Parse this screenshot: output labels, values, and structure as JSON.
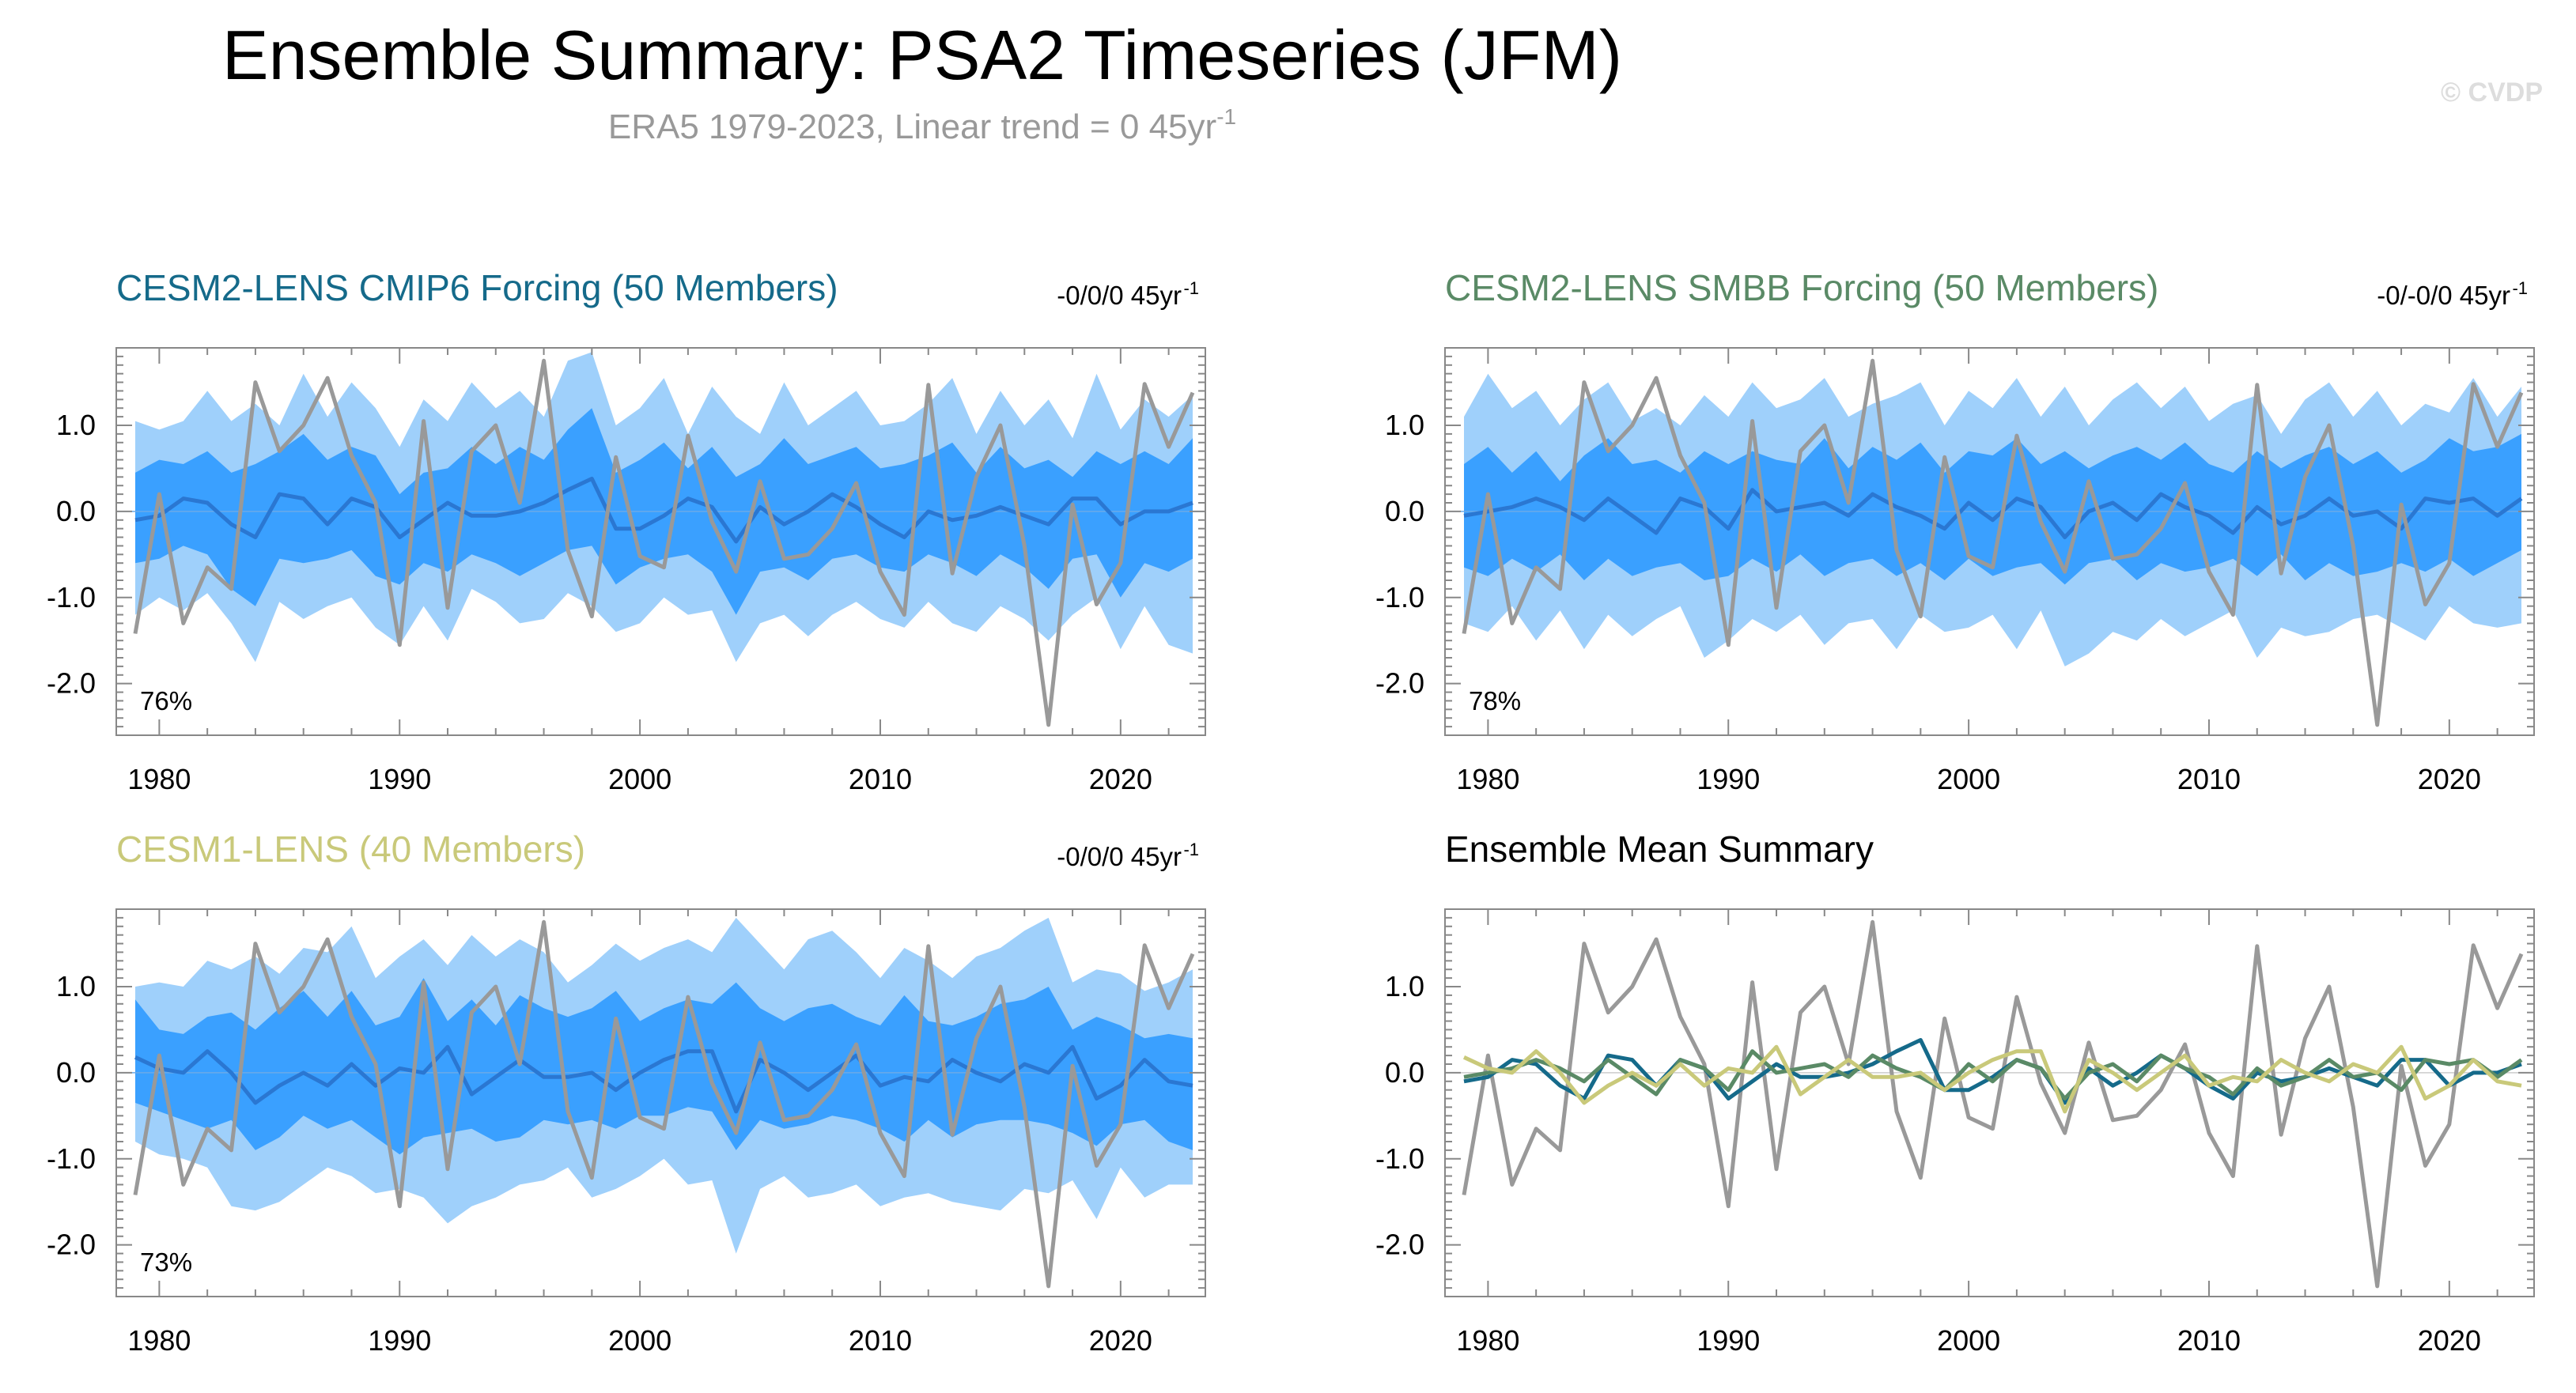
{
  "header": {
    "title": "Ensemble Summary: PSA2 Timeseries (JFM)",
    "subtitle_main": "ERA5 1979-2023, Linear trend = 0 45yr",
    "subtitle_sup": "-1",
    "watermark": "© CVDP"
  },
  "colors": {
    "band_outer": "#9fd0fb",
    "band_inner": "#3aa0ff",
    "ens_mean": "#2a77d2",
    "obs": "#999999",
    "cesm2_cmip6": "#156a8a",
    "cesm2_smbb": "#5a8a66",
    "cesm1": "#c9c97a"
  },
  "chart_data": [
    {
      "type": "area",
      "panel_id": "p1",
      "title": "CESM2-LENS CMIP6 Forcing (50 Members)",
      "title_color": "#156a8a",
      "trend_label": "-0/0/0 45yr",
      "trend_sup": "-1",
      "percent_label": "76%",
      "xlim": [
        1979,
        2023
      ],
      "ylim": [
        -2.6,
        1.9
      ],
      "xticks": [
        "1980",
        "1990",
        "2000",
        "2010",
        "2020"
      ],
      "yticks": [
        "1.0",
        "0.0",
        "-1.0",
        "-2.0"
      ],
      "years": [
        1979,
        1980,
        1981,
        1982,
        1983,
        1984,
        1985,
        1986,
        1987,
        1988,
        1989,
        1990,
        1991,
        1992,
        1993,
        1994,
        1995,
        1996,
        1997,
        1998,
        1999,
        2000,
        2001,
        2002,
        2003,
        2004,
        2005,
        2006,
        2007,
        2008,
        2009,
        2010,
        2011,
        2012,
        2013,
        2014,
        2015,
        2016,
        2017,
        2018,
        2019,
        2020,
        2021,
        2022,
        2023
      ],
      "outer_upper": [
        1.05,
        0.95,
        1.05,
        1.4,
        1.05,
        1.25,
        1.0,
        1.6,
        1.1,
        1.5,
        1.2,
        0.75,
        1.3,
        1.05,
        1.5,
        1.2,
        1.4,
        1.1,
        1.75,
        1.85,
        1.0,
        1.2,
        1.55,
        0.9,
        1.45,
        1.1,
        0.9,
        1.5,
        1.0,
        1.2,
        1.4,
        1.0,
        1.05,
        1.25,
        1.55,
        0.9,
        1.4,
        1.0,
        1.3,
        0.85,
        1.6,
        0.95,
        1.3,
        1.1,
        1.35
      ],
      "inner_upper": [
        0.45,
        0.6,
        0.55,
        0.7,
        0.45,
        0.55,
        0.7,
        0.9,
        0.6,
        0.75,
        0.65,
        0.2,
        0.45,
        0.5,
        0.75,
        0.55,
        0.75,
        0.6,
        0.95,
        1.2,
        0.45,
        0.6,
        0.8,
        0.5,
        0.75,
        0.4,
        0.55,
        0.85,
        0.55,
        0.65,
        0.75,
        0.5,
        0.55,
        0.65,
        0.8,
        0.45,
        0.75,
        0.5,
        0.6,
        0.4,
        0.7,
        0.55,
        0.7,
        0.55,
        0.85
      ],
      "inner_lower": [
        -0.6,
        -0.55,
        -0.4,
        -0.5,
        -0.9,
        -1.1,
        -0.55,
        -0.6,
        -0.55,
        -0.45,
        -0.75,
        -0.85,
        -0.6,
        -0.7,
        -0.5,
        -0.6,
        -0.75,
        -0.6,
        -0.45,
        -0.4,
        -0.85,
        -0.65,
        -0.55,
        -0.5,
        -0.7,
        -1.2,
        -0.7,
        -0.65,
        -0.8,
        -0.55,
        -0.5,
        -0.65,
        -0.7,
        -0.5,
        -0.6,
        -0.75,
        -0.5,
        -0.65,
        -0.9,
        -0.55,
        -0.5,
        -1.0,
        -0.6,
        -0.7,
        -0.55
      ],
      "outer_lower": [
        -1.2,
        -1.0,
        -1.15,
        -0.95,
        -1.3,
        -1.75,
        -1.05,
        -1.25,
        -1.1,
        -1.0,
        -1.35,
        -1.55,
        -1.1,
        -1.5,
        -0.9,
        -1.05,
        -1.3,
        -1.25,
        -0.95,
        -1.1,
        -1.4,
        -1.3,
        -1.0,
        -1.2,
        -1.15,
        -1.75,
        -1.3,
        -1.2,
        -1.45,
        -1.2,
        -1.05,
        -1.25,
        -1.35,
        -1.05,
        -1.3,
        -1.4,
        -1.1,
        -1.25,
        -1.5,
        -1.2,
        -1.0,
        -1.6,
        -1.1,
        -1.55,
        -1.65
      ],
      "ens_mean": [
        -0.1,
        -0.05,
        0.15,
        0.1,
        -0.15,
        -0.3,
        0.2,
        0.15,
        -0.15,
        0.15,
        0.05,
        -0.3,
        -0.1,
        0.1,
        -0.05,
        -0.05,
        0.0,
        0.1,
        0.25,
        0.38,
        -0.2,
        -0.2,
        -0.05,
        0.15,
        0.05,
        -0.35,
        0.05,
        -0.15,
        0.0,
        0.2,
        0.05,
        -0.15,
        -0.3,
        0.0,
        -0.1,
        -0.05,
        0.05,
        -0.05,
        -0.15,
        0.15,
        0.15,
        -0.15,
        0.0,
        0.0,
        0.1
      ]
    },
    {
      "type": "area",
      "panel_id": "p2",
      "title": "CESM2-LENS SMBB Forcing (50 Members)",
      "title_color": "#5a8a66",
      "trend_label": "-0/-0/0 45yr",
      "trend_sup": "-1",
      "percent_label": "78%",
      "xlim": [
        1979,
        2023
      ],
      "ylim": [
        -2.6,
        1.9
      ],
      "xticks": [
        "1980",
        "1990",
        "2000",
        "2010",
        "2020"
      ],
      "yticks": [
        "1.0",
        "0.0",
        "-1.0",
        "-2.0"
      ],
      "years": [
        1979,
        1980,
        1981,
        1982,
        1983,
        1984,
        1985,
        1986,
        1987,
        1988,
        1989,
        1990,
        1991,
        1992,
        1993,
        1994,
        1995,
        1996,
        1997,
        1998,
        1999,
        2000,
        2001,
        2002,
        2003,
        2004,
        2005,
        2006,
        2007,
        2008,
        2009,
        2010,
        2011,
        2012,
        2013,
        2014,
        2015,
        2016,
        2017,
        2018,
        2019,
        2020,
        2021,
        2022,
        2023
      ],
      "outer_upper": [
        1.1,
        1.6,
        1.2,
        1.4,
        1.0,
        1.3,
        1.5,
        1.05,
        1.2,
        1.0,
        1.35,
        1.1,
        1.5,
        1.2,
        1.3,
        1.55,
        1.1,
        1.25,
        1.35,
        1.5,
        1.0,
        1.4,
        1.2,
        1.55,
        1.1,
        1.45,
        1.0,
        1.3,
        1.5,
        1.2,
        1.45,
        1.05,
        1.25,
        1.35,
        0.9,
        1.3,
        1.5,
        1.1,
        1.4,
        1.0,
        1.25,
        1.15,
        1.55,
        1.1,
        1.45
      ],
      "inner_upper": [
        0.55,
        0.75,
        0.45,
        0.7,
        0.35,
        0.65,
        0.85,
        0.55,
        0.6,
        0.45,
        0.7,
        0.55,
        0.7,
        0.6,
        0.55,
        0.85,
        0.5,
        0.75,
        0.6,
        0.8,
        0.45,
        0.7,
        0.65,
        0.85,
        0.55,
        0.7,
        0.5,
        0.65,
        0.75,
        0.6,
        0.8,
        0.55,
        0.45,
        0.7,
        0.5,
        0.65,
        0.75,
        0.55,
        0.7,
        0.45,
        0.6,
        0.85,
        0.7,
        0.75,
        0.9
      ],
      "inner_lower": [
        -0.65,
        -0.75,
        -0.55,
        -0.7,
        -0.5,
        -0.8,
        -0.55,
        -0.75,
        -0.65,
        -0.6,
        -0.8,
        -0.75,
        -0.55,
        -0.7,
        -0.5,
        -0.75,
        -0.6,
        -0.55,
        -0.75,
        -0.6,
        -0.8,
        -0.55,
        -0.75,
        -0.65,
        -0.6,
        -0.85,
        -0.6,
        -0.55,
        -0.8,
        -0.6,
        -0.7,
        -0.65,
        -0.55,
        -0.75,
        -0.5,
        -0.8,
        -0.6,
        -0.75,
        -0.7,
        -0.6,
        -0.7,
        -0.55,
        -0.75,
        -0.6,
        -0.45
      ],
      "outer_lower": [
        -1.3,
        -1.4,
        -1.1,
        -1.5,
        -1.15,
        -1.6,
        -1.2,
        -1.45,
        -1.25,
        -1.1,
        -1.7,
        -1.5,
        -1.25,
        -1.4,
        -1.2,
        -1.55,
        -1.3,
        -1.25,
        -1.6,
        -1.2,
        -1.4,
        -1.35,
        -1.2,
        -1.6,
        -1.15,
        -1.8,
        -1.65,
        -1.4,
        -1.5,
        -1.25,
        -1.45,
        -1.3,
        -1.15,
        -1.7,
        -1.35,
        -1.45,
        -1.4,
        -1.25,
        -1.2,
        -1.35,
        -1.5,
        -1.1,
        -1.3,
        -1.35,
        -1.3
      ],
      "ens_mean": [
        -0.05,
        0.0,
        0.05,
        0.15,
        0.05,
        -0.1,
        0.15,
        -0.05,
        -0.25,
        0.15,
        0.05,
        -0.2,
        0.25,
        0.0,
        0.05,
        0.1,
        -0.05,
        0.2,
        0.05,
        -0.05,
        -0.2,
        0.1,
        -0.1,
        0.15,
        0.05,
        -0.3,
        0.0,
        0.1,
        -0.1,
        0.2,
        0.05,
        -0.05,
        -0.25,
        0.05,
        -0.15,
        -0.05,
        0.15,
        -0.05,
        0.0,
        -0.2,
        0.15,
        0.1,
        0.15,
        -0.05,
        0.15
      ]
    },
    {
      "type": "area",
      "panel_id": "p3",
      "title": "CESM1-LENS (40 Members)",
      "title_color": "#c9c97a",
      "trend_label": "-0/0/0 45yr",
      "trend_sup": "-1",
      "percent_label": "73%",
      "xlim": [
        1979,
        2023
      ],
      "ylim": [
        -2.6,
        1.9
      ],
      "xticks": [
        "1980",
        "1990",
        "2000",
        "2010",
        "2020"
      ],
      "yticks": [
        "1.0",
        "0.0",
        "-1.0",
        "-2.0"
      ],
      "years": [
        1979,
        1980,
        1981,
        1982,
        1983,
        1984,
        1985,
        1986,
        1987,
        1988,
        1989,
        1990,
        1991,
        1992,
        1993,
        1994,
        1995,
        1996,
        1997,
        1998,
        1999,
        2000,
        2001,
        2002,
        2003,
        2004,
        2005,
        2006,
        2007,
        2008,
        2009,
        2010,
        2011,
        2012,
        2013,
        2014,
        2015,
        2016,
        2017,
        2018,
        2019,
        2020,
        2021,
        2022,
        2023
      ],
      "outer_upper": [
        1.0,
        1.05,
        1.0,
        1.3,
        1.2,
        1.35,
        1.15,
        1.45,
        1.4,
        1.7,
        1.1,
        1.35,
        1.55,
        1.25,
        1.6,
        1.35,
        1.55,
        1.4,
        1.05,
        1.25,
        1.5,
        1.3,
        1.45,
        1.55,
        1.4,
        1.8,
        1.5,
        1.2,
        1.55,
        1.65,
        1.4,
        1.1,
        1.45,
        1.3,
        1.1,
        1.35,
        1.45,
        1.65,
        1.8,
        1.05,
        1.2,
        1.15,
        0.95,
        1.05,
        1.2
      ],
      "inner_upper": [
        0.85,
        0.5,
        0.45,
        0.65,
        0.7,
        0.5,
        0.75,
        0.95,
        0.65,
        0.95,
        0.55,
        0.65,
        1.1,
        0.6,
        0.85,
        0.55,
        0.9,
        0.75,
        0.65,
        0.75,
        0.95,
        0.6,
        0.75,
        0.85,
        0.8,
        1.05,
        0.75,
        0.6,
        0.75,
        0.8,
        0.65,
        0.55,
        0.9,
        0.6,
        0.55,
        0.65,
        0.8,
        0.85,
        1.0,
        0.5,
        0.65,
        0.55,
        0.4,
        0.45,
        0.4
      ],
      "inner_lower": [
        -0.35,
        -0.45,
        -0.55,
        -0.65,
        -0.55,
        -0.9,
        -0.75,
        -0.5,
        -0.65,
        -0.55,
        -0.75,
        -0.95,
        -0.75,
        -0.7,
        -0.65,
        -0.8,
        -0.75,
        -0.55,
        -0.6,
        -0.55,
        -0.65,
        -0.5,
        -0.5,
        -0.4,
        -0.45,
        -0.9,
        -0.55,
        -0.65,
        -0.6,
        -0.5,
        -0.55,
        -0.65,
        -0.8,
        -0.55,
        -0.75,
        -0.6,
        -0.55,
        -0.55,
        -0.6,
        -0.7,
        -0.85,
        -0.6,
        -0.55,
        -0.8,
        -0.9
      ],
      "outer_lower": [
        -0.8,
        -0.95,
        -1.0,
        -1.1,
        -1.55,
        -1.6,
        -1.5,
        -1.3,
        -1.1,
        -1.2,
        -1.4,
        -1.35,
        -1.45,
        -1.75,
        -1.55,
        -1.45,
        -1.3,
        -1.25,
        -1.1,
        -1.45,
        -1.35,
        -1.2,
        -1.0,
        -1.3,
        -1.25,
        -2.1,
        -1.35,
        -1.2,
        -1.45,
        -1.4,
        -1.3,
        -1.55,
        -1.45,
        -1.4,
        -1.5,
        -1.55,
        -1.6,
        -1.35,
        -1.4,
        -1.25,
        -1.7,
        -1.1,
        -1.45,
        -1.3,
        -1.3
      ],
      "ens_mean": [
        0.18,
        0.05,
        0.0,
        0.25,
        0.0,
        -0.35,
        -0.15,
        0.0,
        -0.15,
        0.1,
        -0.15,
        0.05,
        0.0,
        0.3,
        -0.25,
        -0.05,
        0.15,
        -0.05,
        -0.05,
        0.0,
        -0.2,
        0.0,
        0.15,
        0.25,
        0.25,
        -0.45,
        0.15,
        0.0,
        -0.2,
        0.0,
        0.2,
        -0.15,
        -0.05,
        -0.1,
        0.15,
        0.0,
        -0.1,
        0.1,
        0.0,
        0.3,
        -0.3,
        -0.15,
        0.15,
        -0.1,
        -0.15
      ]
    },
    {
      "type": "line",
      "panel_id": "p4",
      "title": "Ensemble Mean Summary",
      "title_color": "#000000",
      "xlim": [
        1979,
        2023
      ],
      "ylim": [
        -2.6,
        1.9
      ],
      "xticks": [
        "1980",
        "1990",
        "2000",
        "2010",
        "2020"
      ],
      "yticks": [
        "1.0",
        "0.0",
        "-1.0",
        "-2.0"
      ],
      "years": [
        1979,
        1980,
        1981,
        1982,
        1983,
        1984,
        1985,
        1986,
        1987,
        1988,
        1989,
        1990,
        1991,
        1992,
        1993,
        1994,
        1995,
        1996,
        1997,
        1998,
        1999,
        2000,
        2001,
        2002,
        2003,
        2004,
        2005,
        2006,
        2007,
        2008,
        2009,
        2010,
        2011,
        2012,
        2013,
        2014,
        2015,
        2016,
        2017,
        2018,
        2019,
        2020,
        2021,
        2022,
        2023
      ],
      "series": [
        {
          "name": "CESM2-LENS CMIP6 Forcing",
          "color_key": "cesm2_cmip6",
          "source": "p1"
        },
        {
          "name": "CESM2-LENS SMBB Forcing",
          "color_key": "cesm2_smbb",
          "source": "p2"
        },
        {
          "name": "CESM1-LENS",
          "color_key": "cesm1",
          "source": "p3"
        }
      ]
    }
  ],
  "observations": {
    "name": "ERA5",
    "values": [
      -1.42,
      0.2,
      -1.3,
      -0.65,
      -0.9,
      1.5,
      0.7,
      1.0,
      1.55,
      0.65,
      0.1,
      -1.55,
      1.05,
      -1.12,
      0.7,
      1.0,
      0.1,
      1.75,
      -0.45,
      -1.22,
      0.63,
      -0.52,
      -0.65,
      0.88,
      -0.12,
      -0.7,
      0.35,
      -0.55,
      -0.5,
      -0.2,
      0.33,
      -0.7,
      -1.2,
      1.47,
      -0.72,
      0.4,
      1.0,
      -0.4,
      -2.48,
      0.08,
      -1.08,
      -0.6,
      1.48,
      0.75,
      1.38
    ]
  }
}
